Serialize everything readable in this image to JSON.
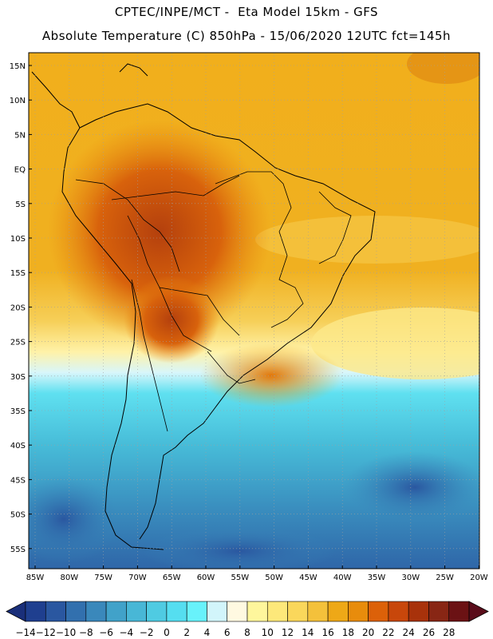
{
  "header": {
    "line1": "CPTEC/INPE/MCT -  Eta Model 15km - GFS",
    "line2": "Absolute Temperature (C) 850hPa - 15/06/2020 12UTC fct=145h"
  },
  "map": {
    "region": "South America",
    "variable": "Absolute Temperature (C) 850hPa",
    "lat_labels": [
      "15N",
      "10N",
      "5N",
      "EQ",
      "5S",
      "10S",
      "15S",
      "20S",
      "25S",
      "30S",
      "35S",
      "40S",
      "45S",
      "50S",
      "55S"
    ],
    "lon_labels": [
      "85W",
      "80W",
      "75W",
      "70W",
      "65W",
      "60W",
      "55W",
      "50W",
      "45W",
      "40W",
      "35W",
      "30W",
      "25W",
      "20W"
    ],
    "grid": "dotted"
  },
  "colorbar": {
    "ticks": [
      "-14",
      "-12",
      "-10",
      "-8",
      "-6",
      "-4",
      "-2",
      "0",
      "2",
      "4",
      "6",
      "8",
      "10",
      "12",
      "14",
      "16",
      "18",
      "20",
      "22",
      "24",
      "26",
      "28"
    ],
    "colors": [
      "#1f3f8f",
      "#2a57a0",
      "#3270ae",
      "#3a88bb",
      "#41a2c9",
      "#48b7d6",
      "#4fcbe2",
      "#55def0",
      "#68f2fb",
      "#d2f5fb",
      "#fff9e1",
      "#fef69c",
      "#fde87a",
      "#fad75b",
      "#f4c13b",
      "#eea817",
      "#e88c0c",
      "#dc6109",
      "#c8470b",
      "#a8320b",
      "#882614",
      "#6b1214"
    ],
    "under_color": "#1a2f7a",
    "over_color": "#5a0c1a"
  }
}
